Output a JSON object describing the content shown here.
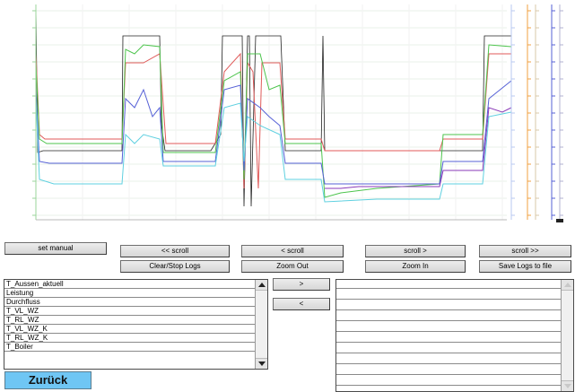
{
  "toolbar": {
    "set_manual": "set manual",
    "scroll_far_left": "<< scroll",
    "scroll_left": "< scroll",
    "scroll_right": "scroll >",
    "scroll_far_right": "scroll >>",
    "clear_stop_logs": "Clear/Stop Logs",
    "zoom_out": "Zoom Out",
    "zoom_in": "Zoom In",
    "save_logs": "Save Logs to file"
  },
  "transfer": {
    "add": ">",
    "remove": "<"
  },
  "available_signals": [
    "T_Aussen_aktuell",
    "Leistung",
    "Durchfluss",
    "T_VL_WZ",
    "T_RL_WZ",
    "T_VL_WZ_K",
    "T_RL_WZ_K",
    "T_Boiler"
  ],
  "back_button": "Zurück",
  "colors": {
    "red": "#e05a5a",
    "green": "#4cc44c",
    "blue": "#5560d6",
    "cyan": "#5fd0e0",
    "purple": "#8a3ab8",
    "orange": "#f0a040",
    "back_button": "#6fc6f4"
  }
}
